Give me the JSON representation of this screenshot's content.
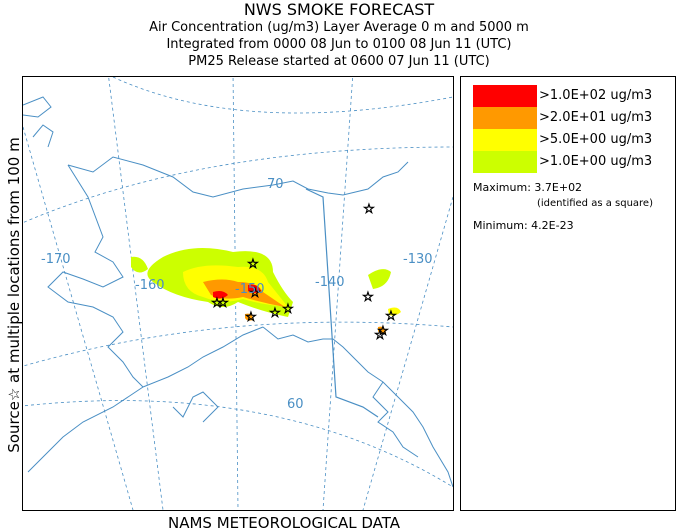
{
  "header": {
    "title": "NWS SMOKE FORECAST",
    "line1": "Air Concentration (ug/m3) Layer Average    0 m and  5000 m",
    "line2": "Integrated from 0000 08 Jun to 0100 08 Jun 11 (UTC)",
    "line3": "PM25 Release started at 0600 07 Jun 11 (UTC)"
  },
  "side_label": "Source☆ at multiple locations   from   100 m",
  "footer": "NAMS METEOROLOGICAL DATA",
  "map": {
    "lon_labels": [
      "-170",
      "-160",
      "-150",
      "-140",
      "-130"
    ],
    "lat_labels": [
      "70",
      "60"
    ]
  },
  "legend": {
    "items": [
      {
        "label": ">1.0E+02 ug/m3",
        "color": "#ff0000"
      },
      {
        "label": ">2.0E+01 ug/m3",
        "color": "#ff9900"
      },
      {
        "label": ">5.0E+00 ug/m3",
        "color": "#ffff00"
      },
      {
        "label": ">1.0E+00 ug/m3",
        "color": "#ccff00"
      }
    ],
    "maximum_label": "Maximum: 3.7E+02",
    "maximum_note": "(identified as a square)",
    "minimum_label": "Minimum: 4.2E-23"
  },
  "colors": {
    "coastline": "#4a8fc4",
    "graticule": "#4a8fc4",
    "border": "#4a8fc4"
  }
}
